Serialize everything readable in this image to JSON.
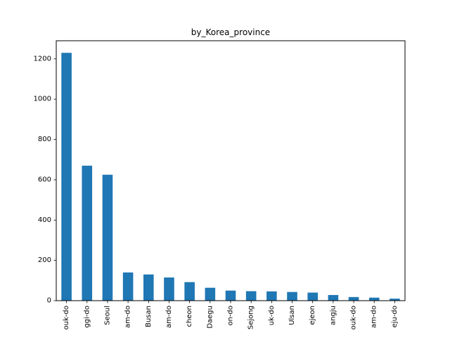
{
  "chart_data": {
    "type": "bar",
    "title": "by_Korea_province",
    "xlabel": "",
    "ylabel": "",
    "categories": [
      "ouk-do",
      "ggi-do",
      "Seoul",
      "am-do",
      "Busan",
      "am-do",
      "cheon",
      "Daegu",
      "on-do",
      "Sejong",
      "uk-do",
      "Ulsan",
      "ejeon",
      "angju",
      "ouk-do",
      "am-do",
      "eju-do"
    ],
    "values": [
      1230,
      670,
      625,
      140,
      130,
      115,
      92,
      64,
      50,
      47,
      46,
      43,
      40,
      28,
      18,
      15,
      10
    ],
    "ylim": [
      0,
      1290
    ],
    "yticks": [
      0,
      200,
      400,
      600,
      800,
      1000,
      1200
    ],
    "bar_color": "#1f77b4",
    "grid": false,
    "legend": "none"
  }
}
